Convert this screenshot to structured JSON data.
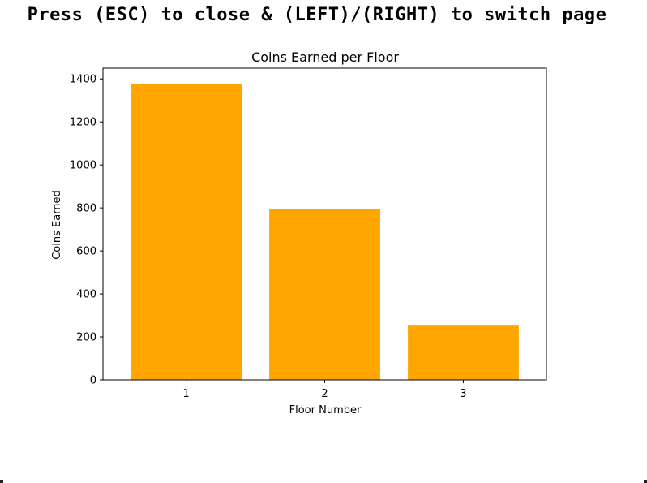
{
  "overlay": {
    "instruction": "Press (ESC) to close & (LEFT)/(RIGHT) to switch page"
  },
  "chart_data": {
    "type": "bar",
    "title": "Coins Earned per Floor",
    "xlabel": "Floor Number",
    "ylabel": "Coins Earned",
    "categories": [
      "1",
      "2",
      "3"
    ],
    "values": [
      1378,
      795,
      256
    ],
    "ylim": [
      0,
      1450
    ],
    "yticks": [
      0,
      200,
      400,
      600,
      800,
      1000,
      1200,
      1400
    ],
    "bar_color": "#ffa500",
    "grid": false,
    "legend": "none"
  }
}
